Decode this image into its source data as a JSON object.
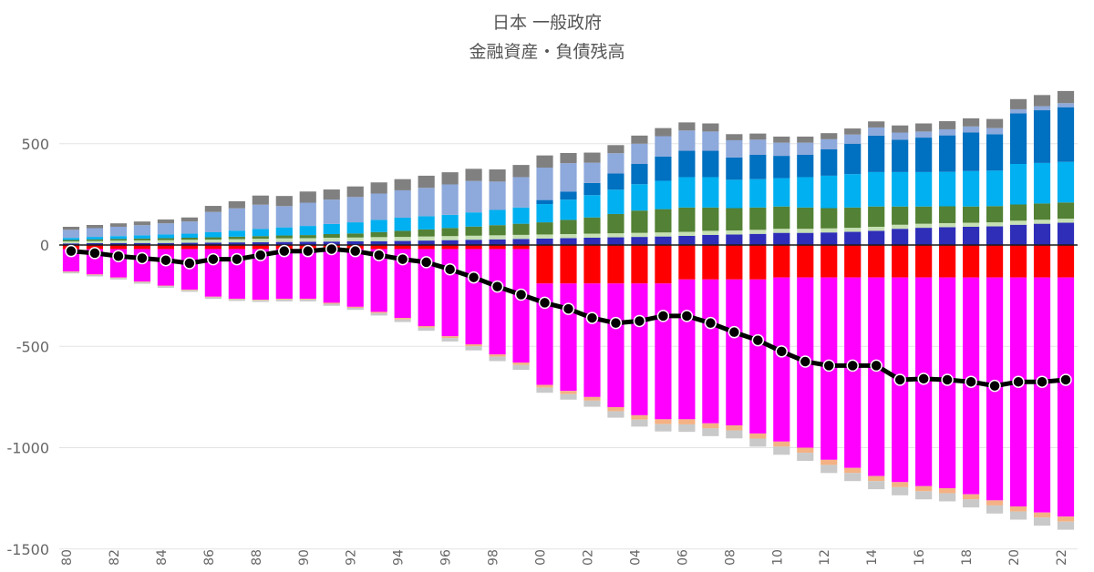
{
  "chart_data": {
    "type": "bar",
    "stacked": true,
    "title": "日本 一般政府",
    "subtitle": "金融資産・負債残高",
    "xlabel": "",
    "ylabel": "",
    "ylim": [
      -1500,
      750
    ],
    "yticks": [
      500,
      0,
      -500,
      -1000,
      -1500
    ],
    "ytick_labels": [
      "500",
      "0",
      "-500",
      "-1000",
      "-1500"
    ],
    "grid": true,
    "legend": "none",
    "categories": [
      "80",
      "81",
      "82",
      "83",
      "84",
      "85",
      "86",
      "87",
      "88",
      "89",
      "90",
      "91",
      "92",
      "93",
      "94",
      "95",
      "96",
      "97",
      "98",
      "99",
      "00",
      "01",
      "02",
      "03",
      "04",
      "05",
      "06",
      "07",
      "08",
      "09",
      "10",
      "11",
      "12",
      "13",
      "14",
      "15",
      "16",
      "17",
      "18",
      "19",
      "20",
      "21",
      "22"
    ],
    "x_tick_labels": [
      "80",
      "82",
      "84",
      "86",
      "88",
      "90",
      "92",
      "94",
      "96",
      "98",
      "00",
      "02",
      "04",
      "06",
      "08",
      "10",
      "12",
      "14",
      "16",
      "18",
      "20",
      "22"
    ],
    "asset_series": [
      {
        "color": "#2e2eb8",
        "values": [
          8,
          9,
          10,
          10,
          10,
          11,
          12,
          13,
          14,
          15,
          16,
          17,
          18,
          19,
          20,
          22,
          24,
          26,
          28,
          30,
          32,
          34,
          36,
          38,
          40,
          42,
          45,
          50,
          52,
          55,
          60,
          60,
          62,
          65,
          70,
          80,
          85,
          88,
          90,
          92,
          100,
          105,
          110
        ]
      },
      {
        "color": "#c6e0b4",
        "values": [
          10,
          11,
          12,
          13,
          14,
          15,
          15,
          16,
          17,
          18,
          18,
          19,
          19,
          20,
          20,
          20,
          20,
          20,
          20,
          20,
          20,
          20,
          20,
          20,
          20,
          20,
          20,
          20,
          20,
          20,
          20,
          20,
          20,
          20,
          20,
          20,
          20,
          20,
          20,
          20,
          20,
          20,
          20
        ]
      },
      {
        "color": "#538135",
        "values": [
          7,
          8,
          8,
          9,
          10,
          10,
          11,
          12,
          13,
          14,
          15,
          18,
          20,
          25,
          30,
          35,
          40,
          45,
          50,
          55,
          60,
          70,
          80,
          95,
          110,
          115,
          120,
          115,
          110,
          110,
          110,
          105,
          100,
          100,
          100,
          90,
          85,
          83,
          80,
          80,
          80,
          80,
          80
        ]
      },
      {
        "color": "#00b0f0",
        "values": [
          10,
          12,
          14,
          16,
          18,
          20,
          25,
          30,
          35,
          40,
          45,
          50,
          55,
          60,
          65,
          65,
          65,
          70,
          75,
          80,
          90,
          100,
          110,
          120,
          130,
          140,
          150,
          150,
          140,
          140,
          140,
          150,
          160,
          165,
          170,
          170,
          170,
          170,
          175,
          175,
          200,
          200,
          200
        ]
      },
      {
        "color": "#0070c0",
        "values": [
          0,
          0,
          0,
          0,
          0,
          0,
          0,
          0,
          0,
          0,
          0,
          0,
          0,
          0,
          0,
          0,
          0,
          0,
          0,
          0,
          20,
          40,
          60,
          80,
          100,
          120,
          130,
          130,
          110,
          120,
          110,
          110,
          130,
          150,
          180,
          160,
          170,
          180,
          190,
          180,
          250,
          260,
          270
        ]
      },
      {
        "color": "#8ea9db",
        "values": [
          40,
          43,
          46,
          50,
          55,
          60,
          100,
          110,
          120,
          105,
          115,
          120,
          125,
          130,
          135,
          140,
          150,
          155,
          140,
          150,
          160,
          140,
          100,
          100,
          100,
          100,
          100,
          95,
          85,
          75,
          65,
          60,
          50,
          45,
          40,
          35,
          30,
          30,
          30,
          30,
          20,
          20,
          20
        ]
      },
      {
        "color": "#808080",
        "values": [
          15,
          16,
          17,
          18,
          19,
          20,
          30,
          35,
          45,
          50,
          55,
          50,
          52,
          55,
          55,
          60,
          60,
          60,
          60,
          60,
          60,
          50,
          50,
          40,
          40,
          40,
          40,
          40,
          30,
          30,
          30,
          30,
          30,
          30,
          30,
          35,
          40,
          40,
          40,
          45,
          50,
          55,
          60
        ]
      }
    ],
    "liability_series": [
      {
        "color": "#ff0000",
        "values": [
          -20,
          -20,
          -20,
          -20,
          -20,
          -20,
          -20,
          -20,
          -20,
          -20,
          -20,
          -20,
          -20,
          -20,
          -20,
          -20,
          -20,
          -20,
          -20,
          -20,
          -190,
          -190,
          -190,
          -190,
          -190,
          -190,
          -170,
          -170,
          -170,
          -170,
          -160,
          -160,
          -160,
          -160,
          -160,
          -160,
          -160,
          -160,
          -160,
          -160,
          -160,
          -160,
          -160
        ]
      },
      {
        "color": "#ff00ff",
        "values": [
          -110,
          -125,
          -140,
          -160,
          -180,
          -200,
          -235,
          -245,
          -250,
          -245,
          -245,
          -265,
          -285,
          -310,
          -340,
          -380,
          -430,
          -470,
          -520,
          -560,
          -500,
          -530,
          -560,
          -610,
          -650,
          -670,
          -690,
          -710,
          -720,
          -760,
          -810,
          -840,
          -900,
          -940,
          -980,
          -1010,
          -1030,
          -1040,
          -1070,
          -1100,
          -1130,
          -1160,
          -1180
        ]
      },
      {
        "color": "#f4b183",
        "values": [
          -3,
          -3,
          -3,
          -3,
          -3,
          -3,
          -3,
          -3,
          -3,
          -4,
          -4,
          -5,
          -5,
          -6,
          -7,
          -8,
          -9,
          -10,
          -11,
          -12,
          -14,
          -16,
          -18,
          -20,
          -22,
          -24,
          -25,
          -25,
          -25,
          -25,
          -25,
          -25,
          -25,
          -25,
          -25,
          -25,
          -25,
          -25,
          -25,
          -25,
          -25,
          -25,
          -25
        ]
      },
      {
        "color": "#c9c9c9",
        "values": [
          -7,
          -7,
          -7,
          -8,
          -8,
          -8,
          -8,
          -8,
          -8,
          -9,
          -9,
          -10,
          -10,
          -12,
          -13,
          -15,
          -17,
          -20,
          -22,
          -24,
          -25,
          -27,
          -30,
          -32,
          -34,
          -36,
          -37,
          -38,
          -39,
          -40,
          -40,
          -40,
          -40,
          -40,
          -40,
          -40,
          -40,
          -40,
          -40,
          -40,
          -40,
          -40,
          -40
        ]
      }
    ],
    "net_line": {
      "color": "#000000",
      "values": [
        -30,
        -40,
        -55,
        -65,
        -75,
        -90,
        -70,
        -70,
        -50,
        -30,
        -30,
        -20,
        -30,
        -50,
        -70,
        -85,
        -120,
        -160,
        -205,
        -245,
        -285,
        -315,
        -360,
        -385,
        -375,
        -350,
        -350,
        -385,
        -430,
        -470,
        -525,
        -575,
        -595,
        -595,
        -595,
        -665,
        -660,
        -665,
        -675,
        -695,
        -675,
        -675,
        -665
      ]
    }
  }
}
